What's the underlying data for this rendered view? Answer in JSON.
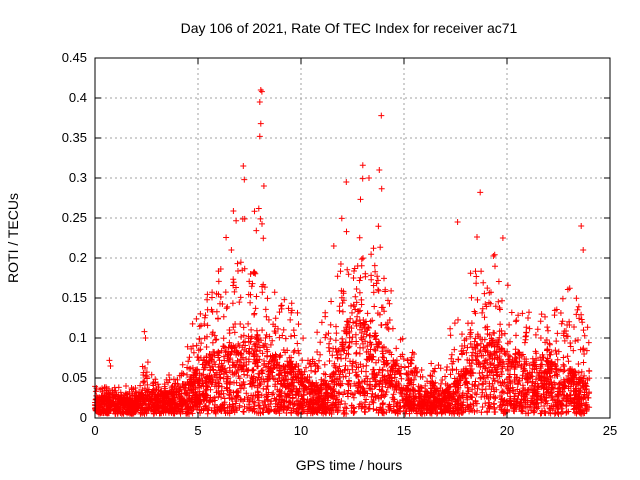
{
  "chart_data": {
    "type": "scatter",
    "title": "Day 106 of 2021, Rate Of TEC Index for receiver ac71",
    "xlabel": "GPS time / hours",
    "ylabel": "ROTI / TECUs",
    "xlim": [
      0,
      25
    ],
    "ylim": [
      0,
      0.45
    ],
    "xticks": [
      0,
      5,
      10,
      15,
      20,
      25
    ],
    "yticks": [
      0,
      0.05,
      0.1,
      0.15,
      0.2,
      0.25,
      0.3,
      0.35,
      0.4,
      0.45
    ],
    "grid": true,
    "marker": "+",
    "color": "#ff0000",
    "envelope": {
      "x": [
        0,
        0.5,
        1,
        2,
        2.4,
        3,
        4,
        4.5,
        5,
        5.5,
        6,
        7,
        7.5,
        8,
        8.5,
        9,
        9.5,
        10,
        10.5,
        11,
        11.5,
        12,
        12.5,
        13,
        13.5,
        14,
        14.5,
        15,
        15.5,
        16,
        16.5,
        17,
        17.5,
        18,
        18.5,
        19,
        19.5,
        20,
        20.5,
        21,
        21.5,
        22,
        22.5,
        23,
        23.5,
        24
      ],
      "typ": [
        0.02,
        0.025,
        0.02,
        0.02,
        0.03,
        0.025,
        0.03,
        0.04,
        0.06,
        0.08,
        0.08,
        0.09,
        0.1,
        0.1,
        0.08,
        0.06,
        0.07,
        0.05,
        0.04,
        0.04,
        0.05,
        0.1,
        0.14,
        0.12,
        0.1,
        0.09,
        0.07,
        0.05,
        0.04,
        0.03,
        0.03,
        0.03,
        0.04,
        0.06,
        0.1,
        0.11,
        0.09,
        0.08,
        0.08,
        0.07,
        0.06,
        0.07,
        0.06,
        0.06,
        0.05,
        0.03
      ],
      "max": [
        0.04,
        0.045,
        0.04,
        0.04,
        0.1,
        0.045,
        0.06,
        0.1,
        0.2,
        0.17,
        0.19,
        0.3,
        0.26,
        0.28,
        0.18,
        0.15,
        0.17,
        0.12,
        0.09,
        0.14,
        0.2,
        0.28,
        0.24,
        0.3,
        0.3,
        0.3,
        0.13,
        0.1,
        0.08,
        0.07,
        0.07,
        0.07,
        0.16,
        0.14,
        0.25,
        0.23,
        0.2,
        0.2,
        0.15,
        0.18,
        0.12,
        0.16,
        0.17,
        0.18,
        0.23,
        0.1
      ]
    },
    "outliers": [
      {
        "x": 2.4,
        "y": 0.108
      },
      {
        "x": 2.45,
        "y": 0.1
      },
      {
        "x": 7.2,
        "y": 0.315
      },
      {
        "x": 7.25,
        "y": 0.298
      },
      {
        "x": 8.05,
        "y": 0.41
      },
      {
        "x": 8.1,
        "y": 0.408
      },
      {
        "x": 8.0,
        "y": 0.395
      },
      {
        "x": 8.05,
        "y": 0.368
      },
      {
        "x": 8.0,
        "y": 0.352
      },
      {
        "x": 8.2,
        "y": 0.29
      },
      {
        "x": 13.0,
        "y": 0.316
      },
      {
        "x": 13.3,
        "y": 0.3
      },
      {
        "x": 13.9,
        "y": 0.378
      },
      {
        "x": 13.8,
        "y": 0.31
      },
      {
        "x": 12.2,
        "y": 0.295
      },
      {
        "x": 17.6,
        "y": 0.245
      },
      {
        "x": 18.7,
        "y": 0.282
      },
      {
        "x": 19.8,
        "y": 0.225
      },
      {
        "x": 23.6,
        "y": 0.24
      },
      {
        "x": 23.7,
        "y": 0.21
      },
      {
        "x": 0.7,
        "y": 0.072
      },
      {
        "x": 0.75,
        "y": 0.065
      }
    ]
  }
}
